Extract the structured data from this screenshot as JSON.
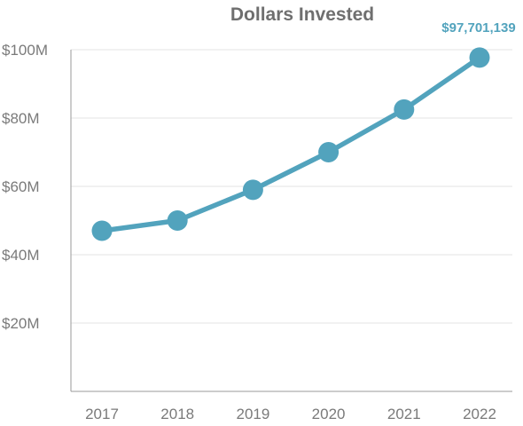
{
  "chart_data": {
    "type": "line",
    "title": "Dollars Invested",
    "xlabel": "",
    "ylabel": "",
    "categories": [
      "2017",
      "2018",
      "2019",
      "2020",
      "2021",
      "2022"
    ],
    "series": [
      {
        "values": [
          47000000,
          50000000,
          59000000,
          70000000,
          82500000,
          97701139
        ]
      }
    ],
    "ylim": [
      0,
      100000000
    ],
    "yticks": [
      20000000,
      40000000,
      60000000,
      80000000,
      100000000
    ],
    "ytick_labels": [
      "$20M",
      "$40M",
      "$60M",
      "$80M",
      "$100M"
    ],
    "grid": true,
    "annotation": {
      "category": "2022",
      "text": "$97,701,139"
    },
    "colors": {
      "line": "#52a3bd",
      "annotation": "#52a3bd",
      "grid": "#e3e3e3",
      "axis": "#9a9a9a"
    }
  }
}
